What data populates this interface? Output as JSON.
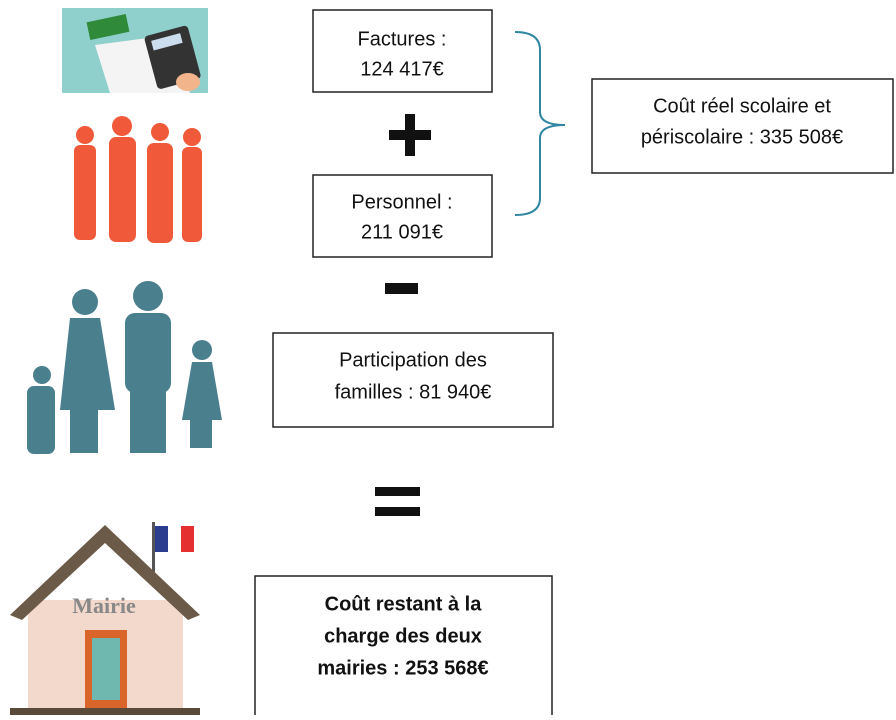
{
  "boxes": [
    {
      "lines": [
        "Factures :",
        "124 417€"
      ]
    },
    {
      "lines": [
        "Personnel :",
        "211 091€"
      ]
    },
    {
      "lines": [
        "Coût réel scolaire et",
        "périscolaire : 335 508€"
      ]
    },
    {
      "lines": [
        "Participation des",
        "familles : 81 940€"
      ]
    },
    {
      "lines": [
        "Coût restant à la",
        "charge des deux",
        "mairies : 253 568€"
      ]
    }
  ],
  "house_label": "Mairie"
}
